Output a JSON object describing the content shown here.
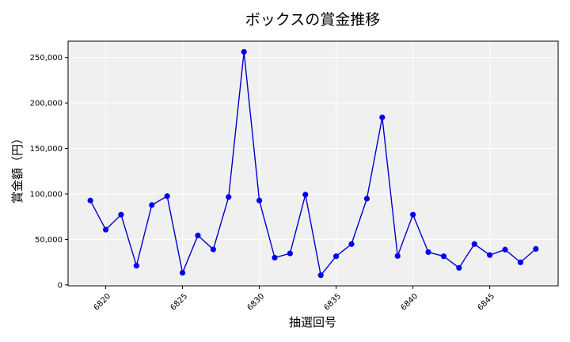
{
  "chart_data": {
    "type": "line",
    "title": "ボックスの賞金推移",
    "xlabel": "抽選回号",
    "ylabel": "賞金額（円）",
    "xlim": [
      6817.55,
      6849.45
    ],
    "ylim": [
      -1000,
      268000
    ],
    "x_ticks": [
      6820,
      6825,
      6830,
      6835,
      6840,
      6845
    ],
    "y_ticks": [
      0,
      50000,
      100000,
      150000,
      200000,
      250000
    ],
    "y_tick_labels": [
      "0",
      "50,000",
      "100,000",
      "150,000",
      "200,000",
      "250,000"
    ],
    "grid": true,
    "line_color": "#0000cc",
    "marker_color": "#0000ee",
    "background": "#f0f0f0",
    "series": [
      {
        "x": [
          6819,
          6820,
          6821,
          6822,
          6823,
          6824,
          6825,
          6826,
          6827,
          6828,
          6829,
          6830,
          6831,
          6832,
          6833,
          6834,
          6835,
          6836,
          6837,
          6838,
          6839,
          6840,
          6841,
          6842,
          6843,
          6844,
          6845,
          6846,
          6847,
          6848
        ],
        "values": [
          92800,
          60700,
          77200,
          21100,
          87800,
          97600,
          13300,
          54400,
          39000,
          96600,
          256300,
          92800,
          29900,
          34600,
          99200,
          10600,
          31500,
          44900,
          94800,
          184200,
          31800,
          77200,
          36000,
          31500,
          18700,
          44900,
          32800,
          38800,
          24800,
          39600
        ]
      }
    ]
  }
}
